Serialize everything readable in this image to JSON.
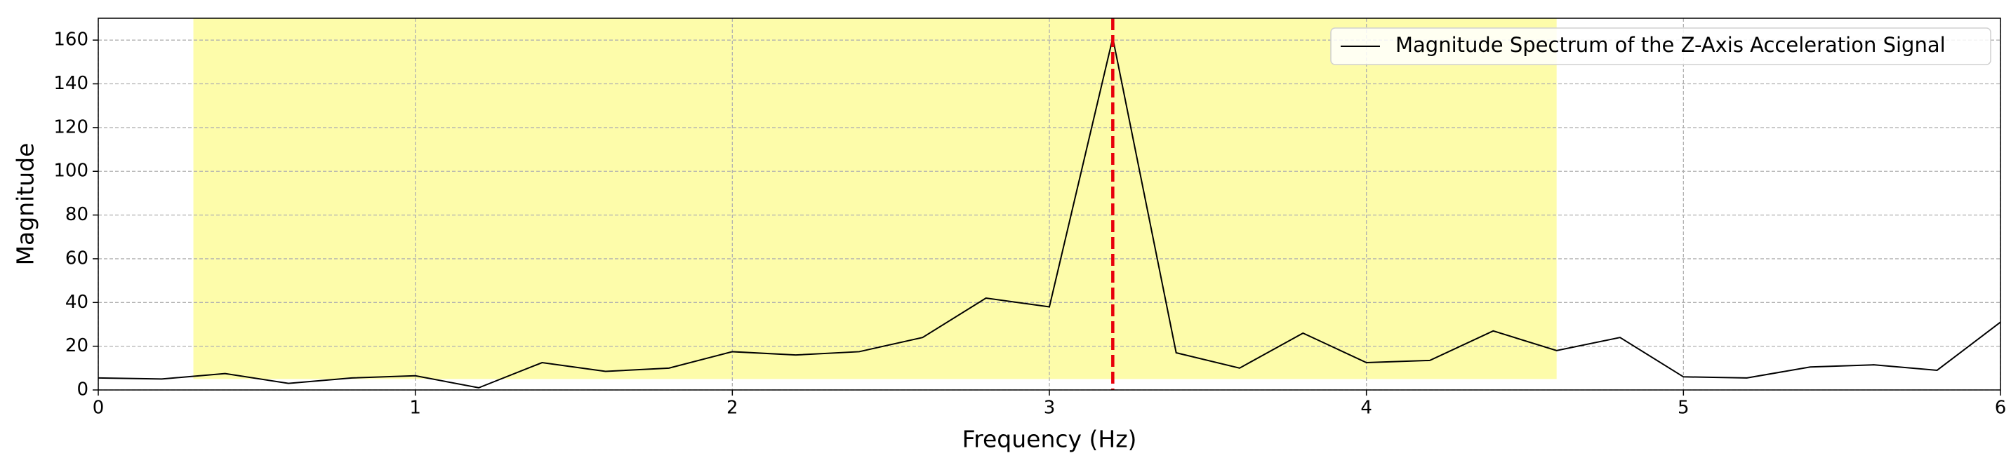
{
  "chart_data": {
    "type": "line",
    "xlabel": "Frequency (Hz)",
    "ylabel": "Magnitude",
    "x": [
      0,
      0.2,
      0.4,
      0.6,
      0.8,
      1.0,
      1.2,
      1.4,
      1.6,
      1.8,
      2.0,
      2.2,
      2.4,
      2.6,
      2.8,
      3.0,
      3.2,
      3.4,
      3.6,
      3.8,
      4.0,
      4.2,
      4.4,
      4.6,
      4.8,
      5.0,
      5.2,
      5.4,
      5.6,
      5.8,
      6.0
    ],
    "series": [
      {
        "name": "Magnitude Spectrum of the Z-Axis Acceleration Signal",
        "color": "#000000",
        "values": [
          5.5,
          5,
          7.5,
          3,
          5.5,
          6.5,
          1,
          12.5,
          8.5,
          10,
          17.5,
          16,
          17.5,
          24,
          42,
          38,
          161,
          17,
          10,
          26,
          12.5,
          13.5,
          27,
          18,
          24,
          6,
          5.5,
          10.5,
          11.5,
          9,
          31
        ]
      }
    ],
    "shaded_region": {
      "x0": 0.3,
      "x1": 4.6,
      "y0": 5,
      "y1": 170,
      "color": "#fdfcaa"
    },
    "vline": {
      "x": 3.2,
      "color": "#e8000b"
    },
    "xlim": [
      0,
      6
    ],
    "xticks": [
      0,
      1,
      2,
      3,
      4,
      5,
      6
    ],
    "ylim": [
      0,
      170
    ],
    "yticks": [
      0,
      20,
      40,
      60,
      80,
      100,
      120,
      140,
      160
    ],
    "grid": true,
    "legend": "upper right"
  }
}
